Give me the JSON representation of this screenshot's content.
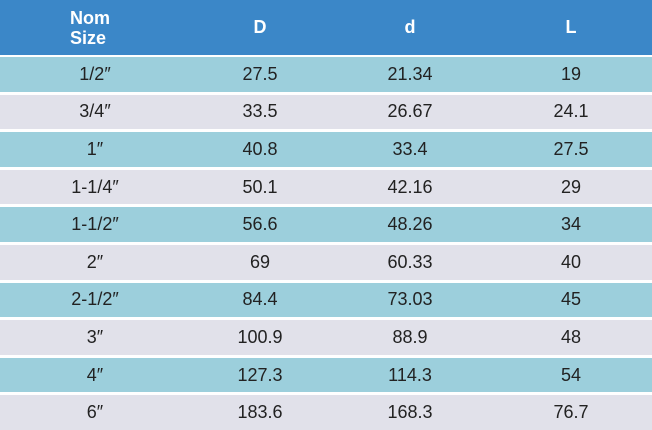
{
  "table": {
    "header": [
      "Nom\nSize",
      "D",
      "d",
      "L"
    ],
    "rows": [
      [
        "1/2″",
        "27.5",
        "21.34",
        "19"
      ],
      [
        "3/4″",
        "33.5",
        "26.67",
        "24.1"
      ],
      [
        "1″",
        "40.8",
        "33.4",
        "27.5"
      ],
      [
        "1-1/4″",
        "50.1",
        "42.16",
        "29"
      ],
      [
        "1-1/2″",
        "56.6",
        "48.26",
        "34"
      ],
      [
        "2″",
        "69",
        "60.33",
        "40"
      ],
      [
        "2-1/2″",
        "84.4",
        "73.03",
        "45"
      ],
      [
        "3″",
        "100.9",
        "88.9",
        "48"
      ],
      [
        "4″",
        "127.3",
        "114.3",
        "54"
      ],
      [
        "6″",
        "183.6",
        "168.3",
        "76.7"
      ]
    ]
  }
}
